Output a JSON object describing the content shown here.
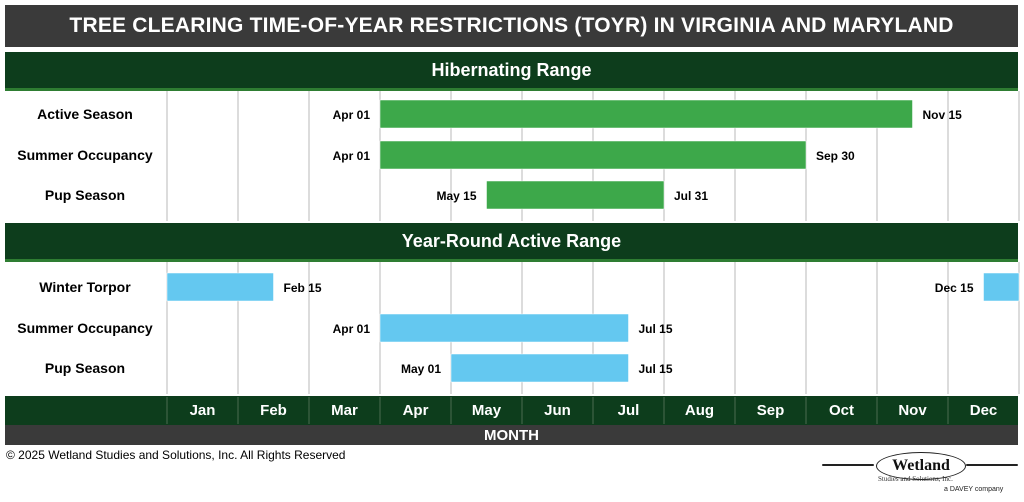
{
  "title": "TREE CLEARING TIME-OF-YEAR RESTRICTIONS (TOYR) IN VIRGINIA AND MARYLAND",
  "footer": {
    "axis_title": "MONTH",
    "copyright": "© 2025 Wetland Studies and Solutions, Inc. All Rights Reserved",
    "logo_word": "Wetland",
    "logo_sub": "Studies and Solutions, Inc.",
    "logo_tag": "a DAVEY company"
  },
  "colors": {
    "hibernating_bar": "#3da84a",
    "year_round_bar": "#64c8f0",
    "header_green": "#0d3d1c",
    "title_gray": "#3a3a3a"
  },
  "chart_data": {
    "type": "gantt",
    "xlabel": "MONTH",
    "months": [
      "Jan",
      "Feb",
      "Mar",
      "Apr",
      "May",
      "Jun",
      "Jul",
      "Aug",
      "Sep",
      "Oct",
      "Nov",
      "Dec"
    ],
    "grid": true,
    "sections": [
      {
        "name": "Hibernating Range",
        "color": "#3da84a",
        "rows": [
          {
            "label": "Active Season",
            "bars": [
              {
                "start": 4.0,
                "end": 11.5
              }
            ],
            "markers": [
              {
                "text": "Apr 01",
                "at": 4.0,
                "side": "left"
              },
              {
                "text": "Nov 15",
                "at": 11.5,
                "side": "right"
              }
            ]
          },
          {
            "label": "Summer Occupancy",
            "bars": [
              {
                "start": 4.0,
                "end": 10.0
              }
            ],
            "markers": [
              {
                "text": "Apr 01",
                "at": 4.0,
                "side": "left"
              },
              {
                "text": "Sep 30",
                "at": 10.0,
                "side": "right"
              }
            ]
          },
          {
            "label": "Pup Season",
            "bars": [
              {
                "start": 5.5,
                "end": 8.0
              }
            ],
            "markers": [
              {
                "text": "May 15",
                "at": 5.5,
                "side": "left"
              },
              {
                "text": "Jul 31",
                "at": 8.0,
                "side": "right"
              }
            ]
          }
        ]
      },
      {
        "name": "Year-Round Active Range",
        "color": "#64c8f0",
        "rows": [
          {
            "label": "Winter Torpor",
            "bars": [
              {
                "start": 1.0,
                "end": 2.5
              },
              {
                "start": 12.5,
                "end": 13.0
              }
            ],
            "markers": [
              {
                "text": "Feb 15",
                "at": 2.5,
                "side": "right"
              },
              {
                "text": "Dec 15",
                "at": 12.5,
                "side": "left"
              }
            ]
          },
          {
            "label": "Summer Occupancy",
            "bars": [
              {
                "start": 4.0,
                "end": 7.5
              }
            ],
            "markers": [
              {
                "text": "Apr 01",
                "at": 4.0,
                "side": "left"
              },
              {
                "text": "Jul 15",
                "at": 7.5,
                "side": "right"
              }
            ]
          },
          {
            "label": "Pup Season",
            "bars": [
              {
                "start": 5.0,
                "end": 7.5
              }
            ],
            "markers": [
              {
                "text": "May 01",
                "at": 5.0,
                "side": "left"
              },
              {
                "text": "Jul 15",
                "at": 7.5,
                "side": "right"
              }
            ]
          }
        ]
      }
    ]
  }
}
